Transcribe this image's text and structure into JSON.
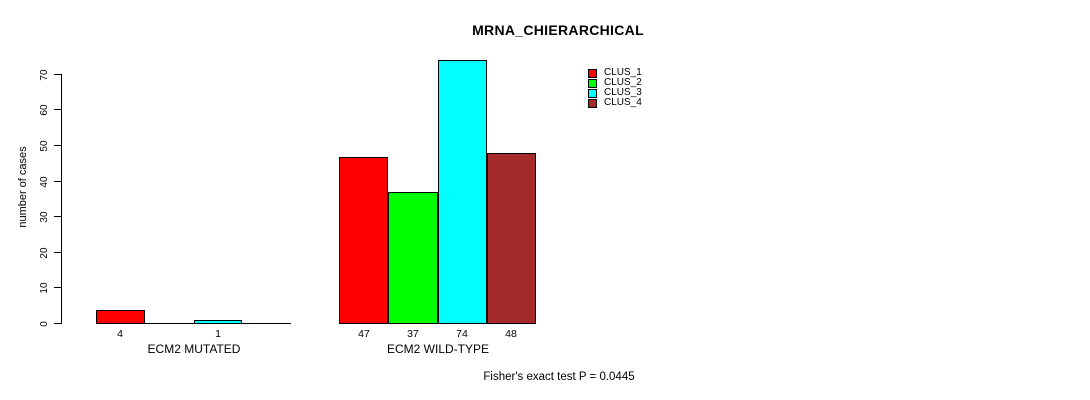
{
  "chart_data": {
    "type": "bar",
    "title": "MRNA_CHIERARCHICAL",
    "ylabel": "number of cases",
    "xlabel": "",
    "ylim": [
      0,
      74
    ],
    "yticks": [
      0,
      10,
      20,
      30,
      40,
      50,
      60,
      70
    ],
    "grid": false,
    "categories": [
      "CLUS_1",
      "CLUS_2",
      "CLUS_3",
      "CLUS_4"
    ],
    "colors": [
      "#ff0000",
      "#00ff00",
      "#00ffff",
      "#a52a2a"
    ],
    "groups": [
      {
        "label": "ECM2 MUTATED",
        "values": [
          4,
          0,
          1,
          0
        ],
        "value_labels": [
          "4",
          "",
          "1",
          ""
        ]
      },
      {
        "label": "ECM2 WILD-TYPE",
        "values": [
          47,
          37,
          74,
          48
        ],
        "value_labels": [
          "47",
          "37",
          "74",
          "48"
        ]
      }
    ],
    "legend": {
      "position": "top-right",
      "entries": [
        {
          "label": "CLUS_1",
          "color": "#ff0000"
        },
        {
          "label": "CLUS_2",
          "color": "#00ff00"
        },
        {
          "label": "CLUS_3",
          "color": "#00ffff"
        },
        {
          "label": "CLUS_4",
          "color": "#a52a2a"
        }
      ]
    },
    "annotation": "Fisher's exact test P = 0.0445"
  }
}
